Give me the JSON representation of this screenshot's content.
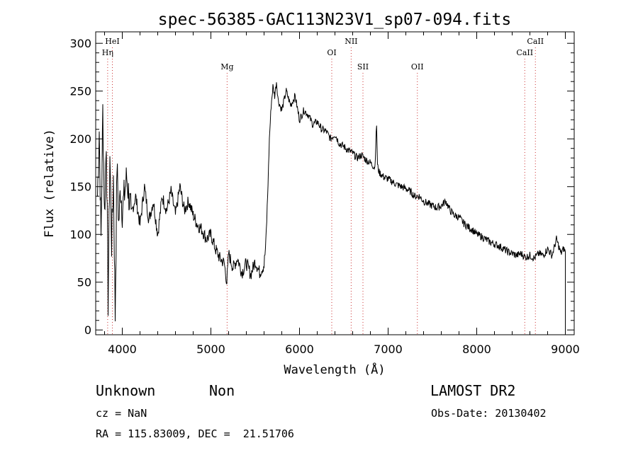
{
  "chart_data": {
    "type": "line",
    "title": "spec-56385-GAC113N23V1_sp07-094.fits",
    "xlabel": "Wavelength (Å)",
    "ylabel": "Flux (relative)",
    "xlim": [
      3700,
      9100
    ],
    "ylim": [
      -5,
      312
    ],
    "xticks": [
      4000,
      5000,
      6000,
      7000,
      8000,
      9000
    ],
    "yticks": [
      0,
      50,
      100,
      150,
      200,
      250,
      300
    ],
    "series": [
      {
        "x": [
          3720,
          3740,
          3760,
          3780,
          3800,
          3820,
          3840,
          3860,
          3880,
          3900,
          3920,
          3940,
          3960,
          3980,
          4000,
          4050,
          4100,
          4150,
          4200,
          4250,
          4300,
          4350,
          4400,
          4450,
          4500,
          4550,
          4600,
          4650,
          4700,
          4750,
          4800,
          4850,
          4900,
          4950,
          5000,
          5050,
          5100,
          5150,
          5180,
          5200,
          5250,
          5300,
          5350,
          5400,
          5450,
          5500,
          5550,
          5600,
          5620,
          5640,
          5660,
          5680,
          5700,
          5720,
          5740,
          5760,
          5800,
          5850,
          5900,
          5950,
          6000,
          6050,
          6100,
          6150,
          6200,
          6250,
          6300,
          6350,
          6400,
          6450,
          6500,
          6550,
          6600,
          6650,
          6700,
          6750,
          6800,
          6850,
          6870,
          6880,
          6890,
          6900,
          6950,
          7000,
          7050,
          7100,
          7150,
          7200,
          7250,
          7300,
          7350,
          7400,
          7450,
          7500,
          7550,
          7600,
          7650,
          7700,
          7750,
          7800,
          7850,
          7900,
          7950,
          8000,
          8050,
          8100,
          8150,
          8200,
          8250,
          8300,
          8350,
          8400,
          8450,
          8500,
          8550,
          8600,
          8650,
          8700,
          8750,
          8800,
          8850,
          8900,
          8950,
          8980,
          9000
        ],
        "y": [
          140,
          210,
          95,
          230,
          120,
          200,
          30,
          185,
          90,
          160,
          15,
          175,
          110,
          150,
          125,
          160,
          120,
          140,
          110,
          150,
          115,
          135,
          100,
          140,
          125,
          145,
          120,
          150,
          125,
          135,
          120,
          110,
          105,
          95,
          100,
          85,
          75,
          70,
          50,
          80,
          65,
          75,
          60,
          70,
          58,
          72,
          60,
          68,
          90,
          140,
          200,
          235,
          255,
          245,
          260,
          240,
          230,
          250,
          235,
          245,
          220,
          230,
          225,
          215,
          218,
          210,
          208,
          200,
          205,
          195,
          192,
          188,
          185,
          180,
          183,
          178,
          175,
          170,
          215,
          172,
          168,
          165,
          160,
          158,
          155,
          152,
          150,
          148,
          145,
          140,
          140,
          135,
          132,
          130,
          128,
          130,
          135,
          125,
          120,
          118,
          112,
          108,
          105,
          100,
          98,
          95,
          92,
          90,
          88,
          85,
          82,
          80,
          78,
          80,
          76,
          78,
          75,
          80,
          78,
          85,
          78,
          95,
          80,
          85,
          82
        ]
      }
    ],
    "annotations": [
      {
        "label": "HeI",
        "x": 3888,
        "row": 1
      },
      {
        "label": "Hη",
        "x": 3835,
        "row": 2
      },
      {
        "label": "Mg",
        "x": 5183,
        "row": 3
      },
      {
        "label": "OI",
        "x": 6364,
        "row": 2
      },
      {
        "label": "NII",
        "x": 6583,
        "row": 1
      },
      {
        "label": "SII",
        "x": 6716,
        "row": 3
      },
      {
        "label": "OII",
        "x": 7330,
        "row": 3
      },
      {
        "label": "CaII",
        "x": 8542,
        "row": 2
      },
      {
        "label": "CaII",
        "x": 8662,
        "row": 1
      }
    ],
    "grid": false
  },
  "footer": {
    "object_class": "Unknown",
    "subclass": "Non",
    "survey": "LAMOST DR2",
    "cz": "cz = NaN",
    "obs_date": "Obs-Date: 20130402",
    "coords": "RA = 115.83009, DEC =  21.51706"
  }
}
